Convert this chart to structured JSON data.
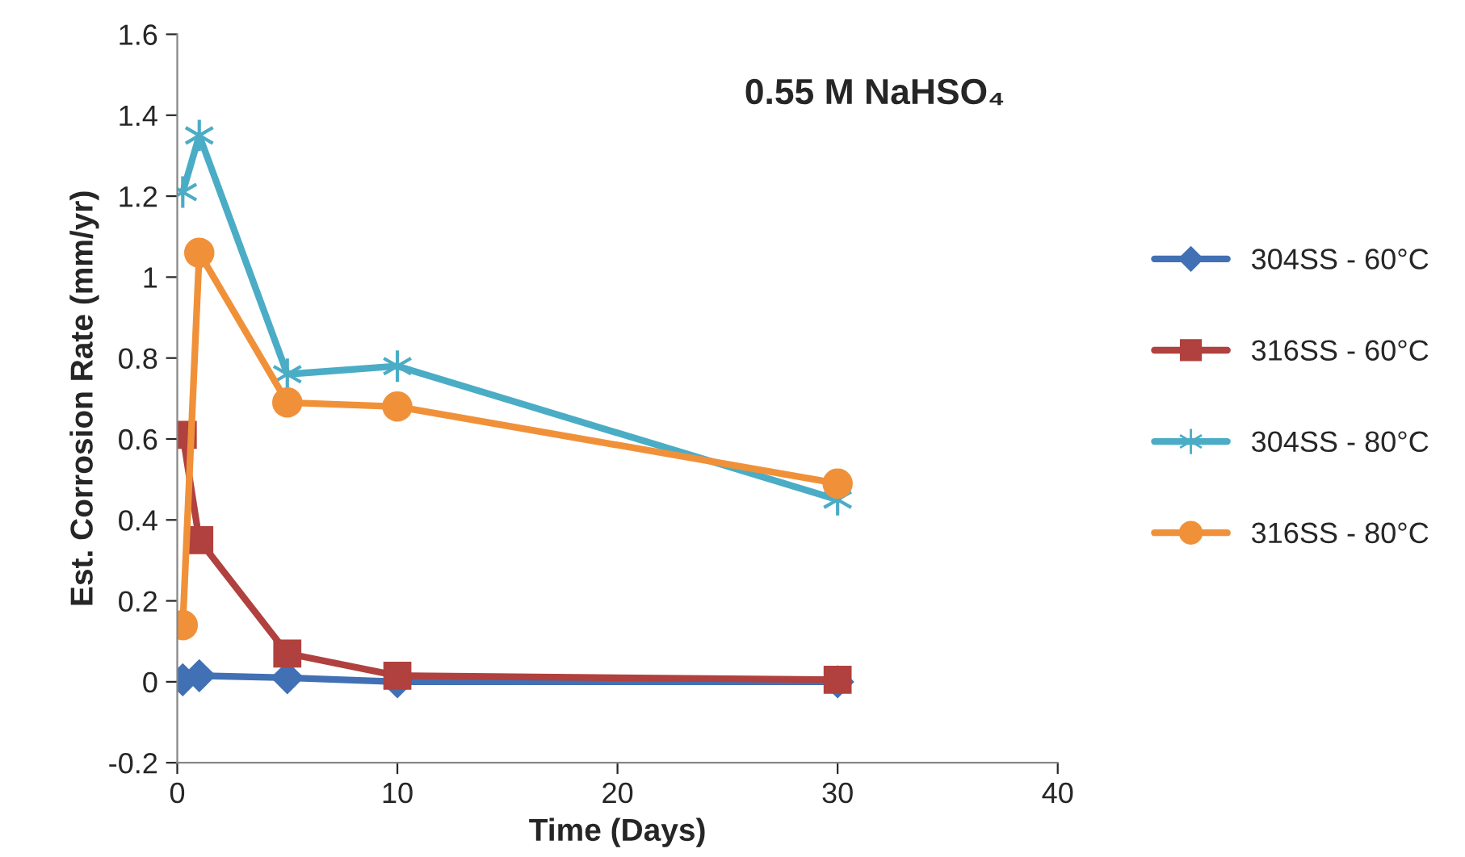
{
  "chart_data": {
    "type": "line",
    "title": "0.55 M NaHSO₄",
    "xlabel": "Time (Days)",
    "ylabel": "Est. Corrosion Rate (mm/yr)",
    "xlim": [
      0,
      40
    ],
    "xticks": [
      0,
      10,
      20,
      30,
      40
    ],
    "ylim": [
      -0.2,
      1.6
    ],
    "yticks": [
      {
        "value": -0.2,
        "label": "-0.2"
      },
      0,
      0.2,
      0.4,
      0.6,
      0.8,
      1,
      1.2,
      1.4,
      1.6
    ],
    "grid": false,
    "legend": "right",
    "line_style": "solid",
    "series": [
      {
        "name": "304SS - 60°C",
        "color": "#4270b4",
        "marker": "diamond",
        "x": [
          0.25,
          1,
          5,
          10,
          30
        ],
        "values": [
          0.005,
          0.015,
          0.01,
          0.0,
          0.0
        ]
      },
      {
        "name": "316SS - 60°C",
        "color": "#b0413e",
        "marker": "square",
        "x": [
          0.25,
          1,
          5,
          10,
          30
        ],
        "values": [
          0.61,
          0.35,
          0.07,
          0.015,
          0.005
        ]
      },
      {
        "name": "304SS - 80°C",
        "color": "#4bacc6",
        "marker": "cross",
        "x": [
          0.25,
          1,
          5,
          10,
          30
        ],
        "values": [
          1.21,
          1.35,
          0.76,
          0.78,
          0.45
        ]
      },
      {
        "name": "316SS - 80°C",
        "color": "#f0913a",
        "marker": "circle",
        "x": [
          0.25,
          1,
          5,
          10,
          30
        ],
        "values": [
          0.14,
          1.06,
          0.69,
          0.68,
          0.49
        ]
      }
    ]
  }
}
